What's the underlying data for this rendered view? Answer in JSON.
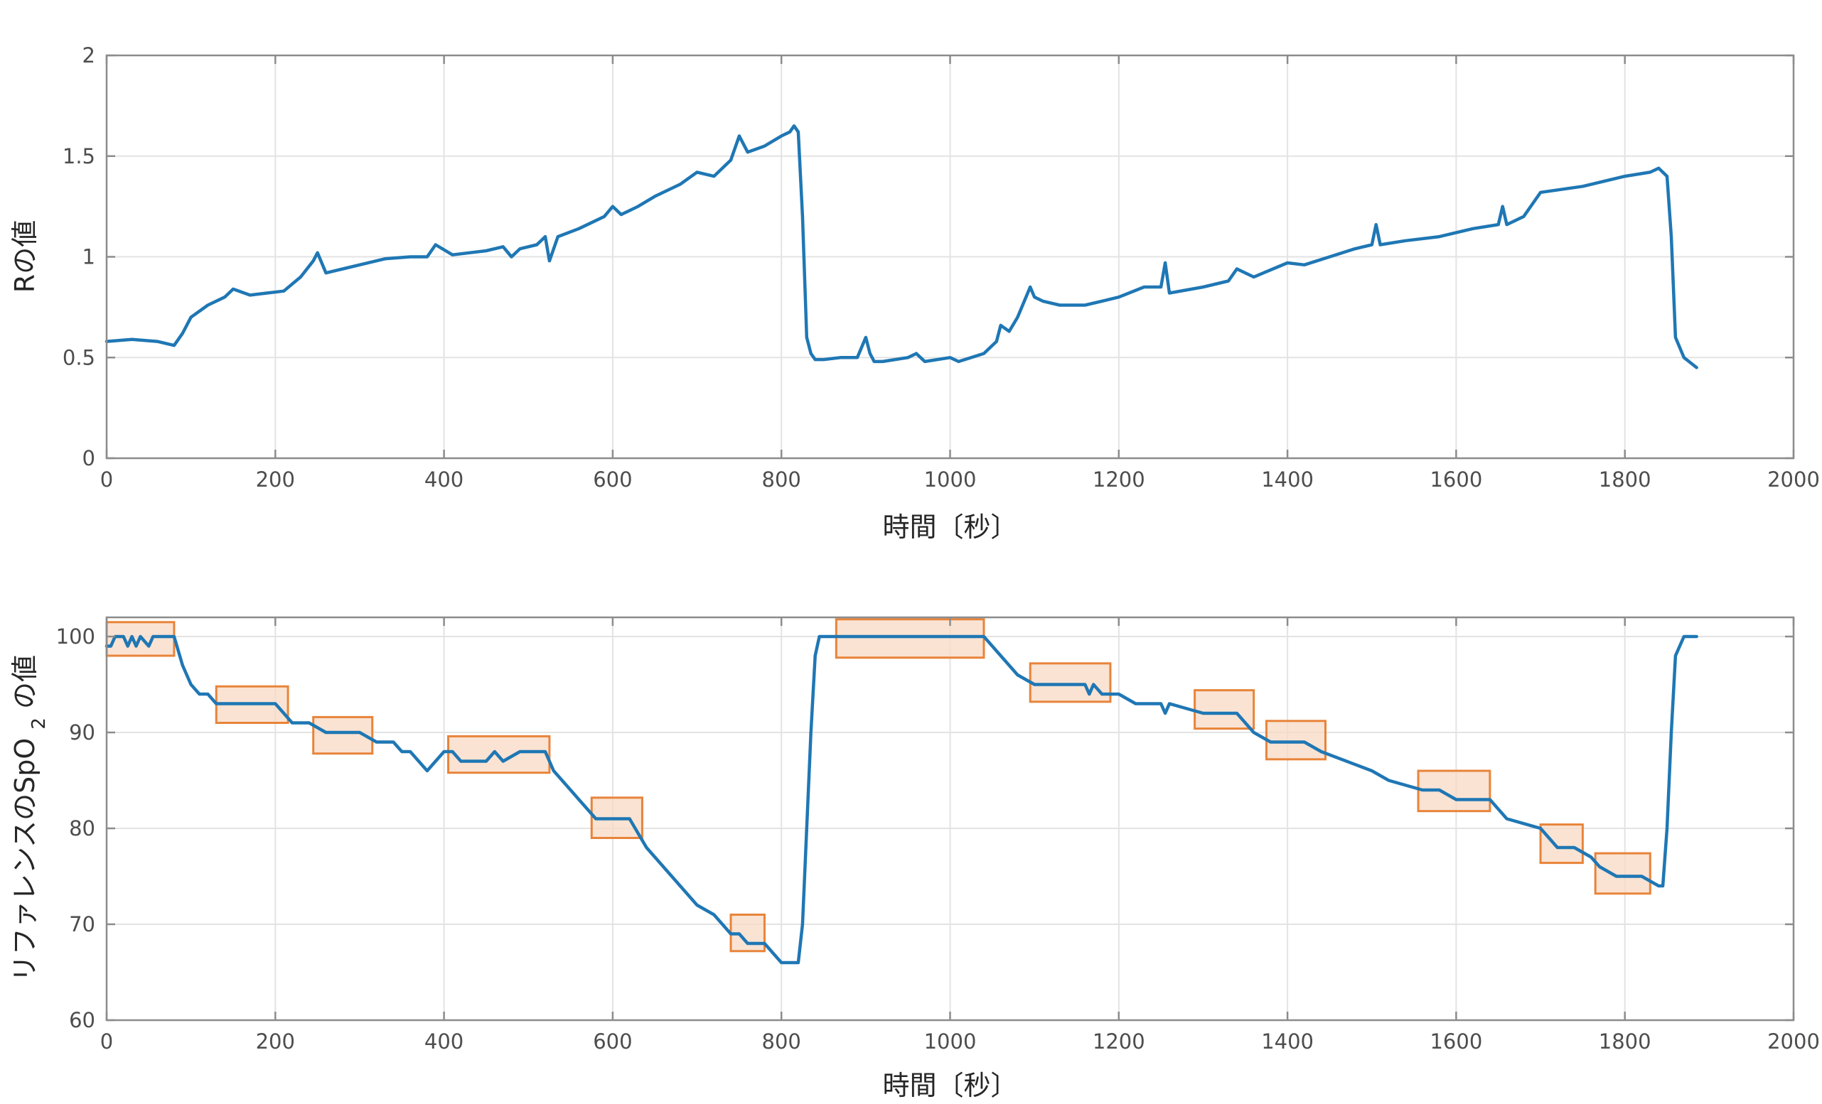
{
  "colors": {
    "series": "#1f77b4",
    "box_stroke": "#e8843a",
    "box_fill": "#f8d9c4"
  },
  "chart_data": [
    {
      "type": "line",
      "title": "",
      "xlabel": "時間〔秒〕",
      "ylabel": "Rの値",
      "xlim": [
        0,
        2000
      ],
      "ylim": [
        0,
        2
      ],
      "xticks": [
        "0",
        "200",
        "400",
        "600",
        "800",
        "1000",
        "1200",
        "1400",
        "1600",
        "1800",
        "2000"
      ],
      "yticks": [
        "0",
        "0.5",
        "1",
        "1.5",
        "2"
      ],
      "grid": true,
      "series": [
        {
          "x": [
            0,
            30,
            60,
            80,
            90,
            100,
            120,
            140,
            150,
            170,
            190,
            210,
            230,
            245,
            250,
            260,
            280,
            300,
            330,
            360,
            380,
            390,
            410,
            430,
            450,
            470,
            480,
            490,
            510,
            520,
            525,
            535,
            560,
            590,
            600,
            610,
            630,
            650,
            680,
            700,
            720,
            740,
            750,
            760,
            780,
            800,
            810,
            815,
            820,
            825,
            830,
            835,
            840,
            850,
            870,
            890,
            900,
            905,
            910,
            920,
            950,
            960,
            970,
            1000,
            1010,
            1040,
            1055,
            1060,
            1070,
            1080,
            1095,
            1100,
            1110,
            1130,
            1160,
            1180,
            1200,
            1230,
            1250,
            1255,
            1260,
            1300,
            1330,
            1340,
            1360,
            1400,
            1420,
            1450,
            1480,
            1500,
            1505,
            1510,
            1540,
            1580,
            1620,
            1650,
            1655,
            1660,
            1680,
            1700,
            1750,
            1800,
            1830,
            1840,
            1850,
            1855,
            1860,
            1870,
            1885
          ],
          "values": [
            0.58,
            0.59,
            0.58,
            0.56,
            0.62,
            0.7,
            0.76,
            0.8,
            0.84,
            0.81,
            0.82,
            0.83,
            0.9,
            0.98,
            1.02,
            0.92,
            0.94,
            0.96,
            0.99,
            1.0,
            1.0,
            1.06,
            1.01,
            1.02,
            1.03,
            1.05,
            1.0,
            1.04,
            1.06,
            1.1,
            0.98,
            1.1,
            1.14,
            1.2,
            1.25,
            1.21,
            1.25,
            1.3,
            1.36,
            1.42,
            1.4,
            1.48,
            1.6,
            1.52,
            1.55,
            1.6,
            1.62,
            1.65,
            1.62,
            1.2,
            0.6,
            0.52,
            0.49,
            0.49,
            0.5,
            0.5,
            0.6,
            0.52,
            0.48,
            0.48,
            0.5,
            0.52,
            0.48,
            0.5,
            0.48,
            0.52,
            0.58,
            0.66,
            0.63,
            0.7,
            0.85,
            0.8,
            0.78,
            0.76,
            0.76,
            0.78,
            0.8,
            0.85,
            0.85,
            0.97,
            0.82,
            0.85,
            0.88,
            0.94,
            0.9,
            0.97,
            0.96,
            1.0,
            1.04,
            1.06,
            1.16,
            1.06,
            1.08,
            1.1,
            1.14,
            1.16,
            1.25,
            1.16,
            1.2,
            1.32,
            1.35,
            1.4,
            1.42,
            1.44,
            1.4,
            1.1,
            0.6,
            0.5,
            0.45
          ]
        }
      ]
    },
    {
      "type": "line",
      "title": "",
      "xlabel": "時間〔秒〕",
      "ylabel_parts": [
        "リファレンスのSpO",
        "2",
        "の値"
      ],
      "xlim": [
        0,
        2000
      ],
      "ylim": [
        60,
        102
      ],
      "xticks": [
        "0",
        "200",
        "400",
        "600",
        "800",
        "1000",
        "1200",
        "1400",
        "1600",
        "1800",
        "2000"
      ],
      "yticks": [
        "60",
        "70",
        "80",
        "90",
        "100"
      ],
      "grid": true,
      "series": [
        {
          "x": [
            0,
            5,
            10,
            20,
            25,
            30,
            35,
            40,
            50,
            55,
            60,
            70,
            80,
            90,
            100,
            110,
            120,
            130,
            140,
            160,
            200,
            210,
            220,
            240,
            260,
            280,
            300,
            320,
            340,
            350,
            360,
            370,
            380,
            390,
            400,
            410,
            420,
            440,
            450,
            460,
            470,
            490,
            500,
            520,
            530,
            540,
            550,
            560,
            570,
            580,
            600,
            620,
            640,
            660,
            680,
            700,
            720,
            740,
            750,
            760,
            780,
            790,
            800,
            810,
            820,
            825,
            830,
            835,
            840,
            845,
            850,
            860,
            880,
            1000,
            1040,
            1060,
            1080,
            1100,
            1140,
            1160,
            1165,
            1170,
            1180,
            1200,
            1220,
            1250,
            1255,
            1260,
            1300,
            1340,
            1360,
            1380,
            1420,
            1440,
            1500,
            1520,
            1560,
            1580,
            1600,
            1640,
            1660,
            1700,
            1720,
            1740,
            1760,
            1770,
            1790,
            1820,
            1840,
            1845,
            1850,
            1855,
            1860,
            1870,
            1885
          ],
          "values": [
            99,
            99,
            100,
            100,
            99,
            100,
            99,
            100,
            99,
            100,
            100,
            100,
            100,
            97,
            95,
            94,
            94,
            93,
            93,
            93,
            93,
            92,
            91,
            91,
            90,
            90,
            90,
            89,
            89,
            88,
            88,
            87,
            86,
            87,
            88,
            88,
            87,
            87,
            87,
            88,
            87,
            88,
            88,
            88,
            86,
            85,
            84,
            83,
            82,
            81,
            81,
            81,
            78,
            76,
            74,
            72,
            71,
            69,
            69,
            68,
            68,
            67,
            66,
            66,
            66,
            70,
            80,
            90,
            98,
            100,
            100,
            100,
            100,
            100,
            100,
            98,
            96,
            95,
            95,
            95,
            94,
            95,
            94,
            94,
            93,
            93,
            92,
            93,
            92,
            92,
            90,
            89,
            89,
            88,
            86,
            85,
            84,
            84,
            83,
            83,
            81,
            80,
            78,
            78,
            77,
            76,
            75,
            75,
            74,
            74,
            80,
            90,
            98,
            100,
            100
          ]
        }
      ],
      "boxes": [
        {
          "x0": 0,
          "x1": 80,
          "y0": 98,
          "y1": 101.5
        },
        {
          "x0": 130,
          "x1": 215,
          "y0": 91,
          "y1": 94.8
        },
        {
          "x0": 245,
          "x1": 315,
          "y0": 87.8,
          "y1": 91.6
        },
        {
          "x0": 405,
          "x1": 525,
          "y0": 85.8,
          "y1": 89.6
        },
        {
          "x0": 575,
          "x1": 635,
          "y0": 79,
          "y1": 83.2
        },
        {
          "x0": 740,
          "x1": 780,
          "y0": 67.2,
          "y1": 71
        },
        {
          "x0": 865,
          "x1": 1040,
          "y0": 97.8,
          "y1": 101.8
        },
        {
          "x0": 1095,
          "x1": 1190,
          "y0": 93.2,
          "y1": 97.2
        },
        {
          "x0": 1290,
          "x1": 1360,
          "y0": 90.4,
          "y1": 94.4
        },
        {
          "x0": 1375,
          "x1": 1445,
          "y0": 87.2,
          "y1": 91.2
        },
        {
          "x0": 1555,
          "x1": 1640,
          "y0": 81.8,
          "y1": 86
        },
        {
          "x0": 1700,
          "x1": 1750,
          "y0": 76.4,
          "y1": 80.4
        },
        {
          "x0": 1765,
          "x1": 1830,
          "y0": 73.2,
          "y1": 77.4
        }
      ]
    }
  ]
}
